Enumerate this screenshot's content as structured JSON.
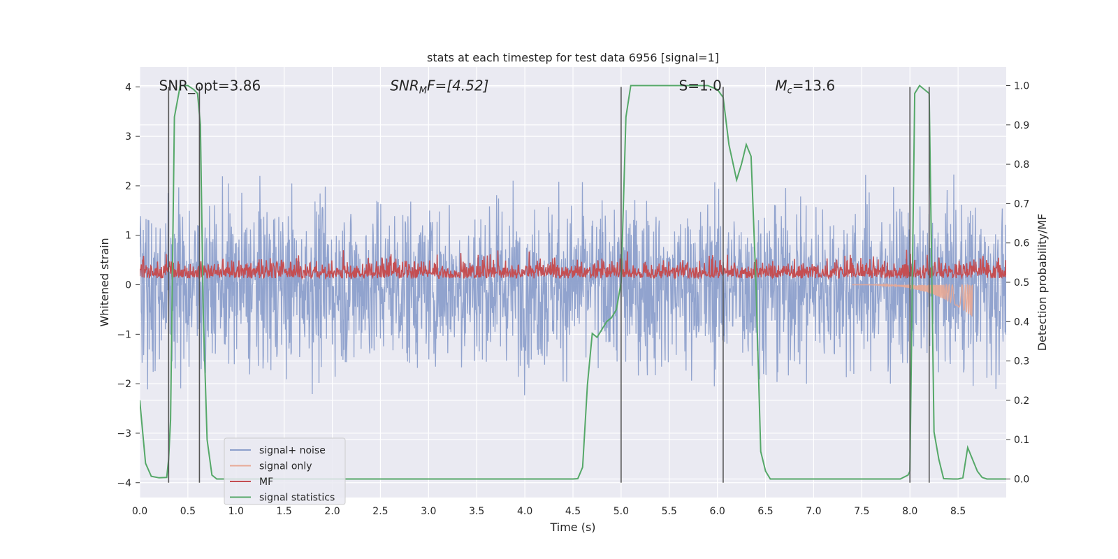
{
  "chart_data": {
    "type": "line",
    "title": "stats at each timestep for test data 6956 [signal=1]",
    "xlabel": "Time (s)",
    "ylabel": "Whitened strain",
    "ylabel_right": "Detection probability/MF",
    "xlim": [
      0.0,
      9.0
    ],
    "ylim": [
      -4.3,
      4.4
    ],
    "ylim_right": [
      -0.047,
      1.047
    ],
    "x_ticks": [
      "0.0",
      "0.5",
      "1.0",
      "1.5",
      "2.0",
      "2.5",
      "3.0",
      "3.5",
      "4.0",
      "4.5",
      "5.0",
      "5.5",
      "6.0",
      "6.5",
      "7.0",
      "7.5",
      "8.0",
      "8.5"
    ],
    "y_ticks": [
      "4",
      "3",
      "2",
      "1",
      "0",
      "−1",
      "−2",
      "−3",
      "−4"
    ],
    "y_ticks_right": [
      "1.0",
      "0.9",
      "0.8",
      "0.7",
      "0.6",
      "0.5",
      "0.4",
      "0.3",
      "0.2",
      "0.1",
      "0.0"
    ],
    "grid": true,
    "legend_position": "lower-left",
    "annotations": [
      {
        "text": "SNR_opt=3.86",
        "x": 0.2,
        "y": 4.0
      },
      {
        "text": "SNR",
        "sub": "M",
        "suffix": "F=[4.52]",
        "x": 2.6,
        "y": 4.0
      },
      {
        "text": "S",
        "suffix": "=1.0",
        "x": 5.6,
        "y": 4.0
      },
      {
        "text": "M",
        "sub": "c",
        "suffix": "=13.6",
        "x": 6.6,
        "y": 4.0
      }
    ],
    "vertical_lines_x": [
      0.3,
      0.62,
      5.0,
      6.06,
      8.0,
      8.2
    ],
    "vertical_lines_range_y": [
      -4.0,
      4.0
    ],
    "series": [
      {
        "name": "signal+ noise",
        "axis": "left",
        "color": "#8c9fcb",
        "noise_std": 0.82,
        "description": "whitened strain"
      },
      {
        "name": "signal only",
        "axis": "left",
        "color": "#e8a995",
        "chirp_start": 7.4,
        "chirp_end": 8.65,
        "chirp_min_amplitude": -0.65
      },
      {
        "name": "MF",
        "axis": "right",
        "color": "#c44e52",
        "baseline": 0.525,
        "spread": 0.025,
        "peak": 0.6
      },
      {
        "name": "signal statistics",
        "axis": "right",
        "color": "#55a868",
        "x": [
          0.0,
          0.06,
          0.12,
          0.2,
          0.28,
          0.3,
          0.32,
          0.36,
          0.42,
          0.5,
          0.56,
          0.6,
          0.63,
          0.66,
          0.7,
          0.75,
          0.8,
          0.9,
          1.2,
          2.0,
          3.0,
          4.0,
          4.5,
          4.55,
          4.6,
          4.65,
          4.7,
          4.75,
          4.8,
          4.85,
          4.9,
          4.95,
          5.0,
          5.05,
          5.1,
          5.15,
          5.2,
          5.5,
          5.7,
          5.9,
          6.0,
          6.06,
          6.12,
          6.2,
          6.25,
          6.3,
          6.35,
          6.4,
          6.45,
          6.5,
          6.55,
          6.6,
          7.0,
          7.5,
          7.9,
          7.98,
          8.0,
          8.05,
          8.1,
          8.15,
          8.2,
          8.25,
          8.3,
          8.35,
          8.45,
          8.5,
          8.55,
          8.6,
          8.65,
          8.7,
          8.75,
          8.8,
          9.0
        ],
        "y": [
          0.2,
          0.04,
          0.007,
          0.003,
          0.004,
          0.05,
          0.15,
          0.92,
          1.0,
          1.0,
          0.99,
          0.98,
          0.9,
          0.42,
          0.1,
          0.01,
          0.0,
          0.0,
          0.0,
          0.0,
          0.0,
          0.0,
          0.0,
          0.001,
          0.03,
          0.24,
          0.37,
          0.36,
          0.38,
          0.4,
          0.41,
          0.43,
          0.5,
          0.92,
          1.0,
          1.0,
          1.0,
          1.0,
          1.0,
          1.0,
          0.99,
          0.97,
          0.85,
          0.76,
          0.8,
          0.85,
          0.82,
          0.5,
          0.07,
          0.02,
          0.0,
          0.0,
          0.0,
          0.0,
          0.0,
          0.01,
          0.02,
          0.98,
          1.0,
          0.99,
          0.98,
          0.12,
          0.05,
          0.001,
          0.0,
          0.0,
          0.003,
          0.08,
          0.05,
          0.02,
          0.004,
          0.0,
          0.0
        ]
      }
    ]
  }
}
